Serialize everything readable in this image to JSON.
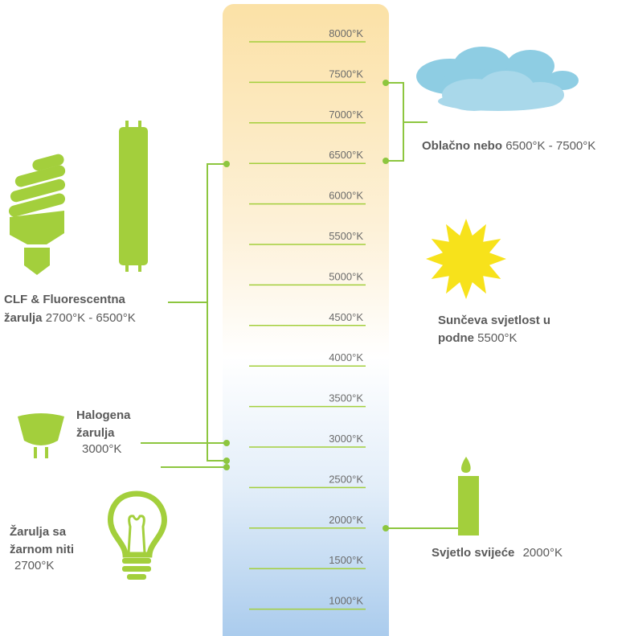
{
  "scale": [
    "8000°K",
    "7500°K",
    "7000°K",
    "6500°K",
    "6000°K",
    "5500°K",
    "5000°K",
    "4500°K",
    "4000°K",
    "3500°K",
    "3000°K",
    "2500°K",
    "2000°K",
    "1500°K",
    "1000°K"
  ],
  "sources": {
    "cloudy": {
      "label": "Oblačno nebo",
      "range": "6500°K - 7500°K"
    },
    "clf": {
      "label_lines": [
        "CLF & Fluorescentna",
        "žarulja"
      ],
      "range": "2700°K - 6500°K"
    },
    "halogen": {
      "label_lines": [
        "Halogena",
        "žarulja"
      ],
      "range": "3000°K"
    },
    "sun": {
      "label_lines": [
        "Sunčeva svjetlost u",
        "podne"
      ],
      "range": "5500°K"
    },
    "candle": {
      "label": "Svjetlo svijeće",
      "range": "2000°K"
    },
    "incandescent": {
      "label_lines": [
        "Žarulja sa",
        "žarnom niti"
      ],
      "range": "2700°K"
    }
  }
}
